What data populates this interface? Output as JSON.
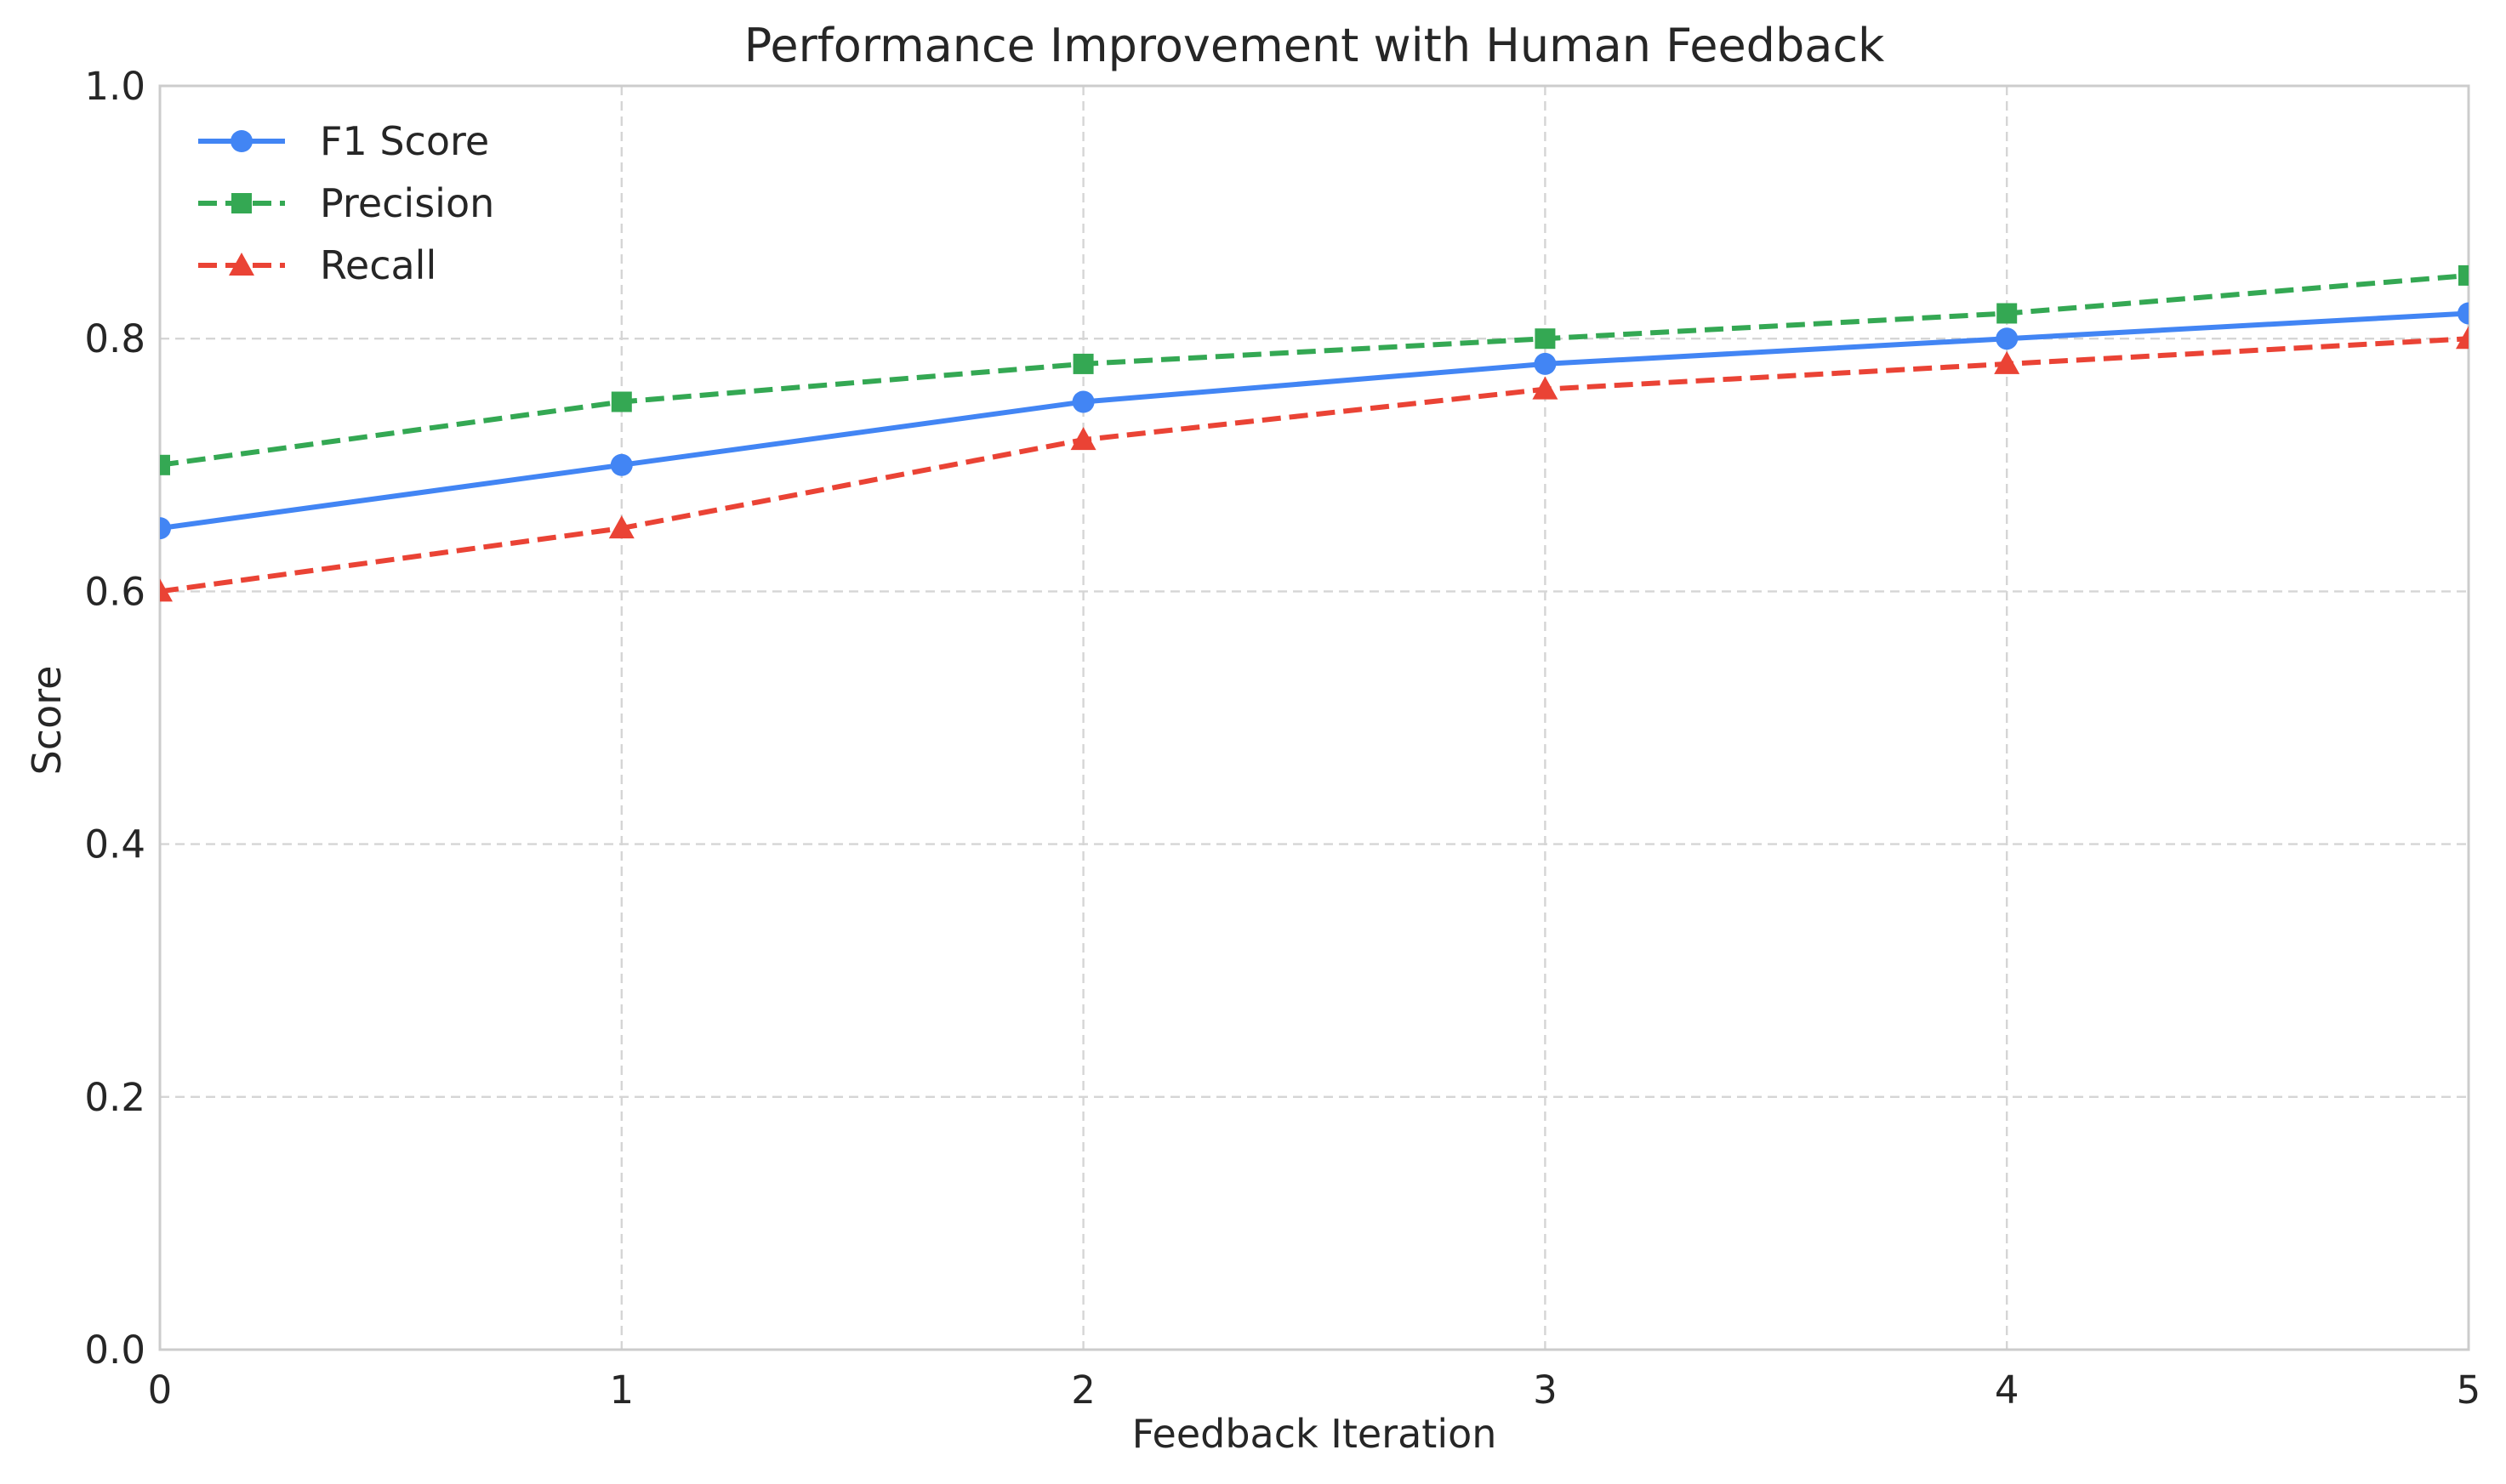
{
  "chart_data": {
    "type": "line",
    "title": "Performance Improvement with Human Feedback",
    "xlabel": "Feedback Iteration",
    "ylabel": "Score",
    "xlim": [
      0,
      5
    ],
    "ylim": [
      0,
      1
    ],
    "x_ticks": [
      "0",
      "1",
      "2",
      "3",
      "4",
      "5"
    ],
    "y_ticks": [
      "0.0",
      "0.2",
      "0.4",
      "0.6",
      "0.8",
      "1.0"
    ],
    "grid": true,
    "legend_position": "top-left",
    "x": [
      0,
      1,
      2,
      3,
      4,
      5
    ],
    "series": [
      {
        "name": "F1 Score",
        "values": [
          0.65,
          0.7,
          0.75,
          0.78,
          0.8,
          0.82
        ],
        "color": "#4285f4",
        "line_style": "solid",
        "marker": "circle"
      },
      {
        "name": "Precision",
        "values": [
          0.7,
          0.75,
          0.78,
          0.8,
          0.82,
          0.85
        ],
        "color": "#34a853",
        "line_style": "dashed",
        "marker": "square"
      },
      {
        "name": "Recall",
        "values": [
          0.6,
          0.65,
          0.72,
          0.76,
          0.78,
          0.8
        ],
        "color": "#ea4335",
        "line_style": "dashed",
        "marker": "triangle"
      }
    ]
  }
}
